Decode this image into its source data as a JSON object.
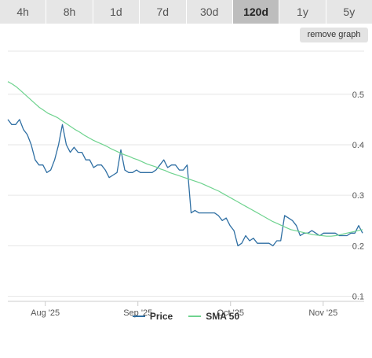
{
  "tabs": [
    {
      "label": "4h",
      "active": false
    },
    {
      "label": "8h",
      "active": false
    },
    {
      "label": "1d",
      "active": false
    },
    {
      "label": "7d",
      "active": false
    },
    {
      "label": "30d",
      "active": false
    },
    {
      "label": "120d",
      "active": true
    },
    {
      "label": "1y",
      "active": false
    },
    {
      "label": "5y",
      "active": false
    }
  ],
  "remove_graph_label": "remove graph",
  "chart_data": {
    "type": "line",
    "x_ticks": [
      "Aug '25",
      "Sep '25",
      "Oct '25",
      "Nov '25"
    ],
    "x_tick_positions": [
      0.105,
      0.365,
      0.625,
      0.885
    ],
    "y_ticks": [
      "0.1",
      "0.2",
      "0.3",
      "0.4",
      "0.5"
    ],
    "ylim": [
      0.09,
      0.59
    ],
    "grid": true,
    "legend_position": "bottom",
    "series": [
      {
        "name": "Price",
        "color": "#2f6fa3",
        "values": [
          0.45,
          0.44,
          0.44,
          0.45,
          0.43,
          0.42,
          0.4,
          0.37,
          0.36,
          0.36,
          0.345,
          0.35,
          0.37,
          0.4,
          0.44,
          0.4,
          0.385,
          0.395,
          0.385,
          0.385,
          0.37,
          0.37,
          0.355,
          0.36,
          0.36,
          0.35,
          0.335,
          0.34,
          0.345,
          0.39,
          0.35,
          0.345,
          0.345,
          0.35,
          0.345,
          0.345,
          0.345,
          0.345,
          0.35,
          0.36,
          0.37,
          0.355,
          0.36,
          0.36,
          0.35,
          0.35,
          0.36,
          0.265,
          0.27,
          0.265,
          0.265,
          0.265,
          0.265,
          0.265,
          0.26,
          0.25,
          0.255,
          0.24,
          0.23,
          0.2,
          0.205,
          0.22,
          0.21,
          0.215,
          0.205,
          0.205,
          0.205,
          0.205,
          0.2,
          0.21,
          0.21,
          0.26,
          0.255,
          0.25,
          0.24,
          0.22,
          0.225,
          0.225,
          0.23,
          0.225,
          0.22,
          0.225,
          0.225,
          0.225,
          0.225,
          0.22,
          0.22,
          0.22,
          0.225,
          0.225,
          0.24,
          0.225
        ]
      },
      {
        "name": "SMA 50",
        "color": "#6fd38f",
        "values": [
          0.525,
          0.52,
          0.514,
          0.506,
          0.498,
          0.49,
          0.482,
          0.474,
          0.468,
          0.462,
          0.458,
          0.454,
          0.448,
          0.442,
          0.436,
          0.43,
          0.425,
          0.419,
          0.414,
          0.409,
          0.405,
          0.401,
          0.397,
          0.392,
          0.388,
          0.384,
          0.38,
          0.377,
          0.373,
          0.37,
          0.366,
          0.362,
          0.359,
          0.356,
          0.352,
          0.349,
          0.345,
          0.342,
          0.339,
          0.336,
          0.333,
          0.33,
          0.327,
          0.324,
          0.32,
          0.316,
          0.312,
          0.308,
          0.303,
          0.298,
          0.293,
          0.288,
          0.283,
          0.278,
          0.273,
          0.268,
          0.263,
          0.258,
          0.253,
          0.248,
          0.244,
          0.24,
          0.236,
          0.232,
          0.23,
          0.228,
          0.226,
          0.224,
          0.222,
          0.221,
          0.22,
          0.219,
          0.219,
          0.22,
          0.222,
          0.224,
          0.226,
          0.228,
          0.23,
          0.232
        ]
      }
    ]
  }
}
